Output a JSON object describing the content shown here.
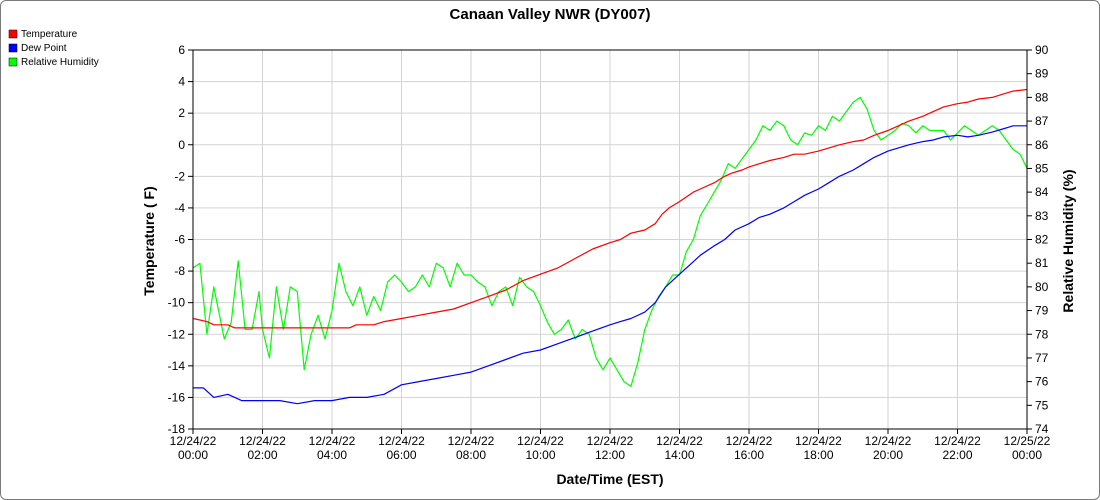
{
  "chart_data": {
    "type": "line",
    "title": "Canaan Valley NWR (DY007)",
    "xlabel": "Date/Time (EST)",
    "ylabel": "Temperature ( F)",
    "y2label": "Relative Humidity (%)",
    "xlim": [
      0,
      24
    ],
    "ylim": [
      -18,
      6
    ],
    "y2lim": [
      74,
      90
    ],
    "grid": true,
    "legend_position": "top-left",
    "x_ticks": [
      {
        "value": 0,
        "date": "12/24/22",
        "time": "00:00"
      },
      {
        "value": 2,
        "date": "12/24/22",
        "time": "02:00"
      },
      {
        "value": 4,
        "date": "12/24/22",
        "time": "04:00"
      },
      {
        "value": 6,
        "date": "12/24/22",
        "time": "06:00"
      },
      {
        "value": 8,
        "date": "12/24/22",
        "time": "08:00"
      },
      {
        "value": 10,
        "date": "12/24/22",
        "time": "10:00"
      },
      {
        "value": 12,
        "date": "12/24/22",
        "time": "12:00"
      },
      {
        "value": 14,
        "date": "12/24/22",
        "time": "14:00"
      },
      {
        "value": 16,
        "date": "12/24/22",
        "time": "16:00"
      },
      {
        "value": 18,
        "date": "12/24/22",
        "time": "18:00"
      },
      {
        "value": 20,
        "date": "12/24/22",
        "time": "20:00"
      },
      {
        "value": 22,
        "date": "12/24/22",
        "time": "22:00"
      },
      {
        "value": 24,
        "date": "12/25/22",
        "time": "00:00"
      }
    ],
    "y_ticks": [
      "6",
      "4",
      "2",
      "0",
      "-2",
      "-4",
      "-6",
      "-8",
      "-10",
      "-12",
      "-14",
      "-16",
      "-18"
    ],
    "y2_ticks": [
      "90",
      "89",
      "88",
      "87",
      "86",
      "85",
      "84",
      "83",
      "82",
      "81",
      "80",
      "79",
      "78",
      "77",
      "76",
      "75",
      "74"
    ],
    "series": [
      {
        "name": "Temperature",
        "axis": "left",
        "color": "#ff0000",
        "points": [
          [
            0,
            -11.0
          ],
          [
            0.4,
            -11.2
          ],
          [
            0.6,
            -11.4
          ],
          [
            1,
            -11.4
          ],
          [
            1.2,
            -11.6
          ],
          [
            2,
            -11.6
          ],
          [
            3,
            -11.6
          ],
          [
            4,
            -11.6
          ],
          [
            4.5,
            -11.6
          ],
          [
            4.7,
            -11.4
          ],
          [
            5.2,
            -11.4
          ],
          [
            5.5,
            -11.2
          ],
          [
            6,
            -11.0
          ],
          [
            6.5,
            -10.8
          ],
          [
            7,
            -10.6
          ],
          [
            7.5,
            -10.4
          ],
          [
            8,
            -10.0
          ],
          [
            8.5,
            -9.6
          ],
          [
            9,
            -9.2
          ],
          [
            9.5,
            -8.6
          ],
          [
            10,
            -8.2
          ],
          [
            10.5,
            -7.8
          ],
          [
            11,
            -7.2
          ],
          [
            11.5,
            -6.6
          ],
          [
            12,
            -6.2
          ],
          [
            12.3,
            -6.0
          ],
          [
            12.6,
            -5.6
          ],
          [
            13,
            -5.4
          ],
          [
            13.3,
            -5.0
          ],
          [
            13.5,
            -4.4
          ],
          [
            13.7,
            -4.0
          ],
          [
            14,
            -3.6
          ],
          [
            14.4,
            -3.0
          ],
          [
            14.6,
            -2.8
          ],
          [
            15,
            -2.4
          ],
          [
            15.3,
            -2.0
          ],
          [
            15.5,
            -1.8
          ],
          [
            15.8,
            -1.6
          ],
          [
            16,
            -1.4
          ],
          [
            16.3,
            -1.2
          ],
          [
            16.6,
            -1.0
          ],
          [
            17,
            -0.8
          ],
          [
            17.3,
            -0.6
          ],
          [
            17.6,
            -0.6
          ],
          [
            18,
            -0.4
          ],
          [
            18.3,
            -0.2
          ],
          [
            18.6,
            0.0
          ],
          [
            19,
            0.2
          ],
          [
            19.3,
            0.3
          ],
          [
            19.6,
            0.6
          ],
          [
            20,
            0.9
          ],
          [
            20.3,
            1.2
          ],
          [
            20.6,
            1.5
          ],
          [
            21,
            1.8
          ],
          [
            21.3,
            2.1
          ],
          [
            21.6,
            2.4
          ],
          [
            22,
            2.6
          ],
          [
            22.3,
            2.7
          ],
          [
            22.6,
            2.9
          ],
          [
            23,
            3.0
          ],
          [
            23.3,
            3.2
          ],
          [
            23.6,
            3.4
          ],
          [
            24,
            3.5
          ]
        ]
      },
      {
        "name": "Dew Point",
        "axis": "left",
        "color": "#0000ff",
        "points": [
          [
            0,
            -15.4
          ],
          [
            0.3,
            -15.4
          ],
          [
            0.6,
            -16.0
          ],
          [
            1,
            -15.8
          ],
          [
            1.4,
            -16.2
          ],
          [
            2,
            -16.2
          ],
          [
            2.5,
            -16.2
          ],
          [
            3,
            -16.4
          ],
          [
            3.5,
            -16.2
          ],
          [
            4,
            -16.2
          ],
          [
            4.5,
            -16.0
          ],
          [
            5,
            -16.0
          ],
          [
            5.5,
            -15.8
          ],
          [
            6,
            -15.2
          ],
          [
            6.5,
            -15.0
          ],
          [
            7,
            -14.8
          ],
          [
            7.5,
            -14.6
          ],
          [
            8,
            -14.4
          ],
          [
            8.5,
            -14.0
          ],
          [
            9,
            -13.6
          ],
          [
            9.5,
            -13.2
          ],
          [
            10,
            -13.0
          ],
          [
            10.5,
            -12.6
          ],
          [
            11,
            -12.2
          ],
          [
            11.5,
            -11.8
          ],
          [
            12,
            -11.4
          ],
          [
            12.3,
            -11.2
          ],
          [
            12.6,
            -11.0
          ],
          [
            13,
            -10.6
          ],
          [
            13.3,
            -10.0
          ],
          [
            13.6,
            -9.0
          ],
          [
            14,
            -8.2
          ],
          [
            14.3,
            -7.6
          ],
          [
            14.6,
            -7.0
          ],
          [
            15,
            -6.4
          ],
          [
            15.3,
            -6.0
          ],
          [
            15.6,
            -5.4
          ],
          [
            16,
            -5.0
          ],
          [
            16.3,
            -4.6
          ],
          [
            16.6,
            -4.4
          ],
          [
            17,
            -4.0
          ],
          [
            17.3,
            -3.6
          ],
          [
            17.6,
            -3.2
          ],
          [
            18,
            -2.8
          ],
          [
            18.3,
            -2.4
          ],
          [
            18.6,
            -2.0
          ],
          [
            19,
            -1.6
          ],
          [
            19.3,
            -1.2
          ],
          [
            19.6,
            -0.8
          ],
          [
            20,
            -0.4
          ],
          [
            20.3,
            -0.2
          ],
          [
            20.6,
            0.0
          ],
          [
            21,
            0.2
          ],
          [
            21.3,
            0.3
          ],
          [
            21.6,
            0.5
          ],
          [
            22,
            0.6
          ],
          [
            22.3,
            0.5
          ],
          [
            22.6,
            0.6
          ],
          [
            23,
            0.8
          ],
          [
            23.3,
            1.0
          ],
          [
            23.6,
            1.2
          ],
          [
            24,
            1.2
          ]
        ]
      },
      {
        "name": "Relative Humidity",
        "axis": "right",
        "color": "#00ff00",
        "points": [
          [
            0,
            80.8
          ],
          [
            0.2,
            81.0
          ],
          [
            0.4,
            78.0
          ],
          [
            0.6,
            80.0
          ],
          [
            0.9,
            77.8
          ],
          [
            1.1,
            78.5
          ],
          [
            1.3,
            81.1
          ],
          [
            1.5,
            78.2
          ],
          [
            1.7,
            78.2
          ],
          [
            1.9,
            79.8
          ],
          [
            2.0,
            78.2
          ],
          [
            2.2,
            77.0
          ],
          [
            2.4,
            80.0
          ],
          [
            2.6,
            78.2
          ],
          [
            2.8,
            80.0
          ],
          [
            3.0,
            79.8
          ],
          [
            3.2,
            76.5
          ],
          [
            3.4,
            78.0
          ],
          [
            3.6,
            78.8
          ],
          [
            3.8,
            77.8
          ],
          [
            4.0,
            79.0
          ],
          [
            4.2,
            81.0
          ],
          [
            4.4,
            79.8
          ],
          [
            4.6,
            79.2
          ],
          [
            4.8,
            80.0
          ],
          [
            5.0,
            78.8
          ],
          [
            5.2,
            79.6
          ],
          [
            5.4,
            79.0
          ],
          [
            5.6,
            80.2
          ],
          [
            5.8,
            80.5
          ],
          [
            6.0,
            80.2
          ],
          [
            6.2,
            79.8
          ],
          [
            6.4,
            80.0
          ],
          [
            6.6,
            80.5
          ],
          [
            6.8,
            80.0
          ],
          [
            7.0,
            81.0
          ],
          [
            7.2,
            80.8
          ],
          [
            7.4,
            80.0
          ],
          [
            7.6,
            81.0
          ],
          [
            7.8,
            80.5
          ],
          [
            8.0,
            80.5
          ],
          [
            8.2,
            80.2
          ],
          [
            8.4,
            80.0
          ],
          [
            8.6,
            79.2
          ],
          [
            8.8,
            79.8
          ],
          [
            9.0,
            80.0
          ],
          [
            9.2,
            79.2
          ],
          [
            9.4,
            80.4
          ],
          [
            9.6,
            80.0
          ],
          [
            9.8,
            79.8
          ],
          [
            10.0,
            79.2
          ],
          [
            10.2,
            78.5
          ],
          [
            10.4,
            78.0
          ],
          [
            10.6,
            78.2
          ],
          [
            10.8,
            78.6
          ],
          [
            11.0,
            77.8
          ],
          [
            11.2,
            78.2
          ],
          [
            11.4,
            78.0
          ],
          [
            11.6,
            77.0
          ],
          [
            11.8,
            76.5
          ],
          [
            12.0,
            77.0
          ],
          [
            12.2,
            76.5
          ],
          [
            12.4,
            76.0
          ],
          [
            12.6,
            75.8
          ],
          [
            12.8,
            76.8
          ],
          [
            13.0,
            78.2
          ],
          [
            13.2,
            79.0
          ],
          [
            13.4,
            79.6
          ],
          [
            13.6,
            80.0
          ],
          [
            13.8,
            80.5
          ],
          [
            14.0,
            80.5
          ],
          [
            14.2,
            81.5
          ],
          [
            14.4,
            82.0
          ],
          [
            14.6,
            83.0
          ],
          [
            14.8,
            83.5
          ],
          [
            15.0,
            84.0
          ],
          [
            15.2,
            84.5
          ],
          [
            15.4,
            85.2
          ],
          [
            15.6,
            85.0
          ],
          [
            15.8,
            85.4
          ],
          [
            16.0,
            85.8
          ],
          [
            16.2,
            86.2
          ],
          [
            16.4,
            86.8
          ],
          [
            16.6,
            86.6
          ],
          [
            16.8,
            87.0
          ],
          [
            17.0,
            86.8
          ],
          [
            17.2,
            86.2
          ],
          [
            17.4,
            86.0
          ],
          [
            17.6,
            86.5
          ],
          [
            17.8,
            86.4
          ],
          [
            18.0,
            86.8
          ],
          [
            18.2,
            86.6
          ],
          [
            18.4,
            87.2
          ],
          [
            18.6,
            87.0
          ],
          [
            18.8,
            87.4
          ],
          [
            19.0,
            87.8
          ],
          [
            19.2,
            88.0
          ],
          [
            19.4,
            87.5
          ],
          [
            19.6,
            86.6
          ],
          [
            19.8,
            86.2
          ],
          [
            20.0,
            86.4
          ],
          [
            20.2,
            86.6
          ],
          [
            20.4,
            86.9
          ],
          [
            20.6,
            86.8
          ],
          [
            20.8,
            86.5
          ],
          [
            21.0,
            86.8
          ],
          [
            21.2,
            86.6
          ],
          [
            21.4,
            86.6
          ],
          [
            21.6,
            86.6
          ],
          [
            21.8,
            86.2
          ],
          [
            22.0,
            86.5
          ],
          [
            22.2,
            86.8
          ],
          [
            22.4,
            86.6
          ],
          [
            22.6,
            86.4
          ],
          [
            22.8,
            86.6
          ],
          [
            23.0,
            86.8
          ],
          [
            23.2,
            86.6
          ],
          [
            23.4,
            86.2
          ],
          [
            23.6,
            85.8
          ],
          [
            23.8,
            85.6
          ],
          [
            24.0,
            85.0
          ]
        ]
      }
    ]
  }
}
